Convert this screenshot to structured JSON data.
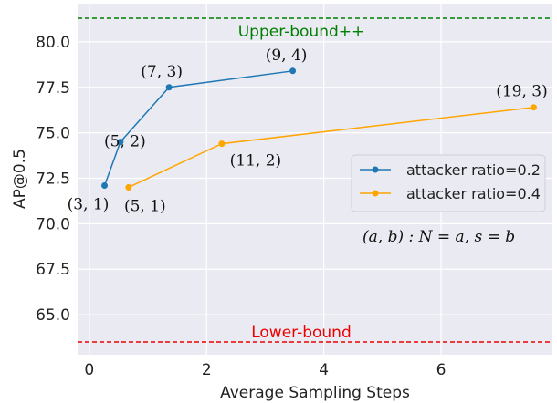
{
  "chart_data": {
    "type": "line",
    "xlabel": "Average Sampling Steps",
    "ylabel": "AP@0.5",
    "xlim": [
      -0.2,
      7.9
    ],
    "ylim": [
      62.8,
      82.1
    ],
    "xticks": [
      0,
      2,
      4,
      6
    ],
    "yticks": [
      65.0,
      67.5,
      70.0,
      72.5,
      75.0,
      77.5,
      80.0
    ],
    "ytick_labels": [
      "65.0",
      "67.5",
      "70.0",
      "72.5",
      "75.0",
      "77.5",
      "80.0"
    ],
    "grid": true,
    "background": "#eaeaf2",
    "series": [
      {
        "name": "attacker ratio=0.2",
        "color": "#1f77b4",
        "x": [
          0.26,
          0.53,
          1.36,
          3.47
        ],
        "y": [
          72.1,
          74.5,
          77.5,
          78.4
        ],
        "labels": [
          "(3, 1)",
          "(5, 2)",
          "(7, 3)",
          "(9, 4)"
        ]
      },
      {
        "name": "attacker ratio=0.4",
        "color": "#ffa500",
        "x": [
          0.67,
          2.26,
          7.58
        ],
        "y": [
          72.0,
          74.4,
          76.4
        ],
        "labels": [
          "(5, 1)",
          "(11, 2)",
          "(19, 3)"
        ]
      }
    ],
    "reference_lines": [
      {
        "label": "Upper-bound++",
        "y": 81.3,
        "color": "#008000"
      },
      {
        "label": "Lower-bound",
        "y": 63.5,
        "color": "#ee0000"
      }
    ],
    "annotation": "(a, b) : N = a, s = b",
    "legend_position": "right"
  }
}
